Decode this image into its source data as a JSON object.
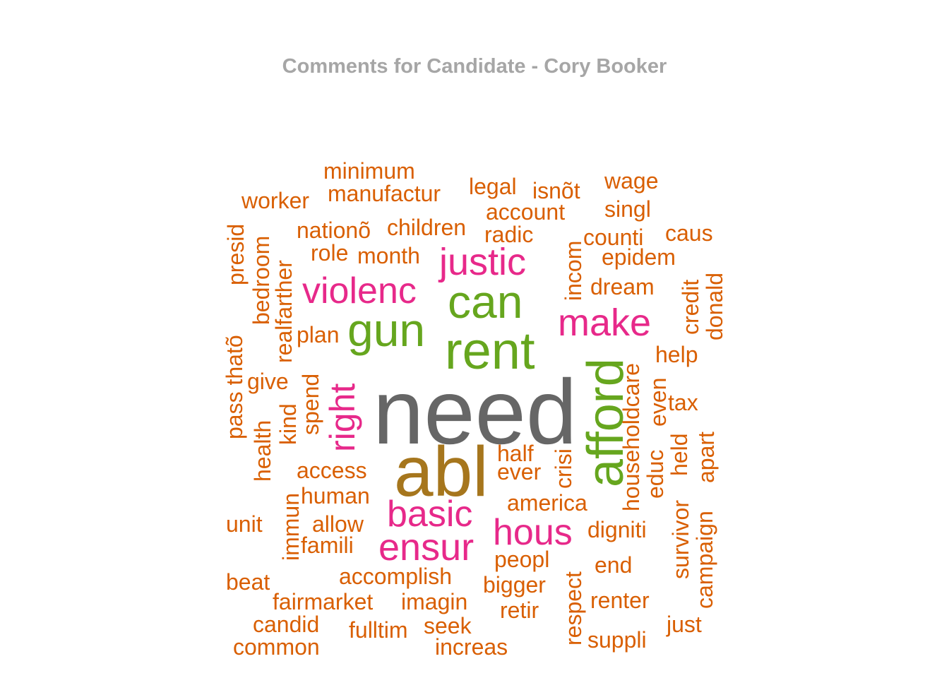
{
  "title": "Comments for Candidate - Cory Booker",
  "chart_data": {
    "type": "wordcloud",
    "title": "Comments for Candidate - Cory Booker",
    "colors": {
      "gray": "#666666",
      "olive": "#a6761d",
      "green": "#66a61e",
      "pink": "#e7298a",
      "orange": "#d95f02"
    },
    "words": [
      {
        "text": "need",
        "color": "gray"
      },
      {
        "text": "abl",
        "color": "olive"
      },
      {
        "text": "rent",
        "color": "green"
      },
      {
        "text": "afford",
        "color": "green"
      },
      {
        "text": "can",
        "color": "green"
      },
      {
        "text": "gun",
        "color": "green"
      },
      {
        "text": "justic",
        "color": "pink"
      },
      {
        "text": "violenc",
        "color": "pink"
      },
      {
        "text": "make",
        "color": "pink"
      },
      {
        "text": "right",
        "color": "pink"
      },
      {
        "text": "basic",
        "color": "pink"
      },
      {
        "text": "ensur",
        "color": "pink"
      },
      {
        "text": "hous",
        "color": "pink"
      },
      {
        "text": "minimum",
        "color": "orange"
      },
      {
        "text": "manufactur",
        "color": "orange"
      },
      {
        "text": "legal",
        "color": "orange"
      },
      {
        "text": "isnõt",
        "color": "orange"
      },
      {
        "text": "wage",
        "color": "orange"
      },
      {
        "text": "worker",
        "color": "orange"
      },
      {
        "text": "account",
        "color": "orange"
      },
      {
        "text": "singl",
        "color": "orange"
      },
      {
        "text": "nationõ",
        "color": "orange"
      },
      {
        "text": "children",
        "color": "orange"
      },
      {
        "text": "radic",
        "color": "orange"
      },
      {
        "text": "counti",
        "color": "orange"
      },
      {
        "text": "caus",
        "color": "orange"
      },
      {
        "text": "role",
        "color": "orange"
      },
      {
        "text": "month",
        "color": "orange"
      },
      {
        "text": "epidem",
        "color": "orange"
      },
      {
        "text": "dream",
        "color": "orange"
      },
      {
        "text": "plan",
        "color": "orange"
      },
      {
        "text": "help",
        "color": "orange"
      },
      {
        "text": "give",
        "color": "orange"
      },
      {
        "text": "tax",
        "color": "orange"
      },
      {
        "text": "half",
        "color": "orange"
      },
      {
        "text": "ever",
        "color": "orange"
      },
      {
        "text": "access",
        "color": "orange"
      },
      {
        "text": "human",
        "color": "orange"
      },
      {
        "text": "america",
        "color": "orange"
      },
      {
        "text": "unit",
        "color": "orange"
      },
      {
        "text": "allow",
        "color": "orange"
      },
      {
        "text": "digniti",
        "color": "orange"
      },
      {
        "text": "famili",
        "color": "orange"
      },
      {
        "text": "peopl",
        "color": "orange"
      },
      {
        "text": "end",
        "color": "orange"
      },
      {
        "text": "accomplish",
        "color": "orange"
      },
      {
        "text": "beat",
        "color": "orange"
      },
      {
        "text": "bigger",
        "color": "orange"
      },
      {
        "text": "fairmarket",
        "color": "orange"
      },
      {
        "text": "imagin",
        "color": "orange"
      },
      {
        "text": "renter",
        "color": "orange"
      },
      {
        "text": "retir",
        "color": "orange"
      },
      {
        "text": "candid",
        "color": "orange"
      },
      {
        "text": "fulltim",
        "color": "orange"
      },
      {
        "text": "seek",
        "color": "orange"
      },
      {
        "text": "just",
        "color": "orange"
      },
      {
        "text": "common",
        "color": "orange"
      },
      {
        "text": "increas",
        "color": "orange"
      },
      {
        "text": "suppli",
        "color": "orange"
      },
      {
        "text": "presid",
        "color": "orange"
      },
      {
        "text": "bedroom",
        "color": "orange"
      },
      {
        "text": "realfarther",
        "color": "orange"
      },
      {
        "text": "pass thatõ",
        "color": "orange"
      },
      {
        "text": "health",
        "color": "orange"
      },
      {
        "text": "kind",
        "color": "orange"
      },
      {
        "text": "spend",
        "color": "orange"
      },
      {
        "text": "immun",
        "color": "orange"
      },
      {
        "text": "incom",
        "color": "orange"
      },
      {
        "text": "crisi",
        "color": "orange"
      },
      {
        "text": "respect",
        "color": "orange"
      },
      {
        "text": "householdcare",
        "color": "orange"
      },
      {
        "text": "even",
        "color": "orange"
      },
      {
        "text": "educ",
        "color": "orange"
      },
      {
        "text": "credit",
        "color": "orange"
      },
      {
        "text": "donald",
        "color": "orange"
      },
      {
        "text": "held",
        "color": "orange"
      },
      {
        "text": "apart",
        "color": "orange"
      },
      {
        "text": "survivor",
        "color": "orange"
      },
      {
        "text": "campaign",
        "color": "orange"
      }
    ]
  }
}
